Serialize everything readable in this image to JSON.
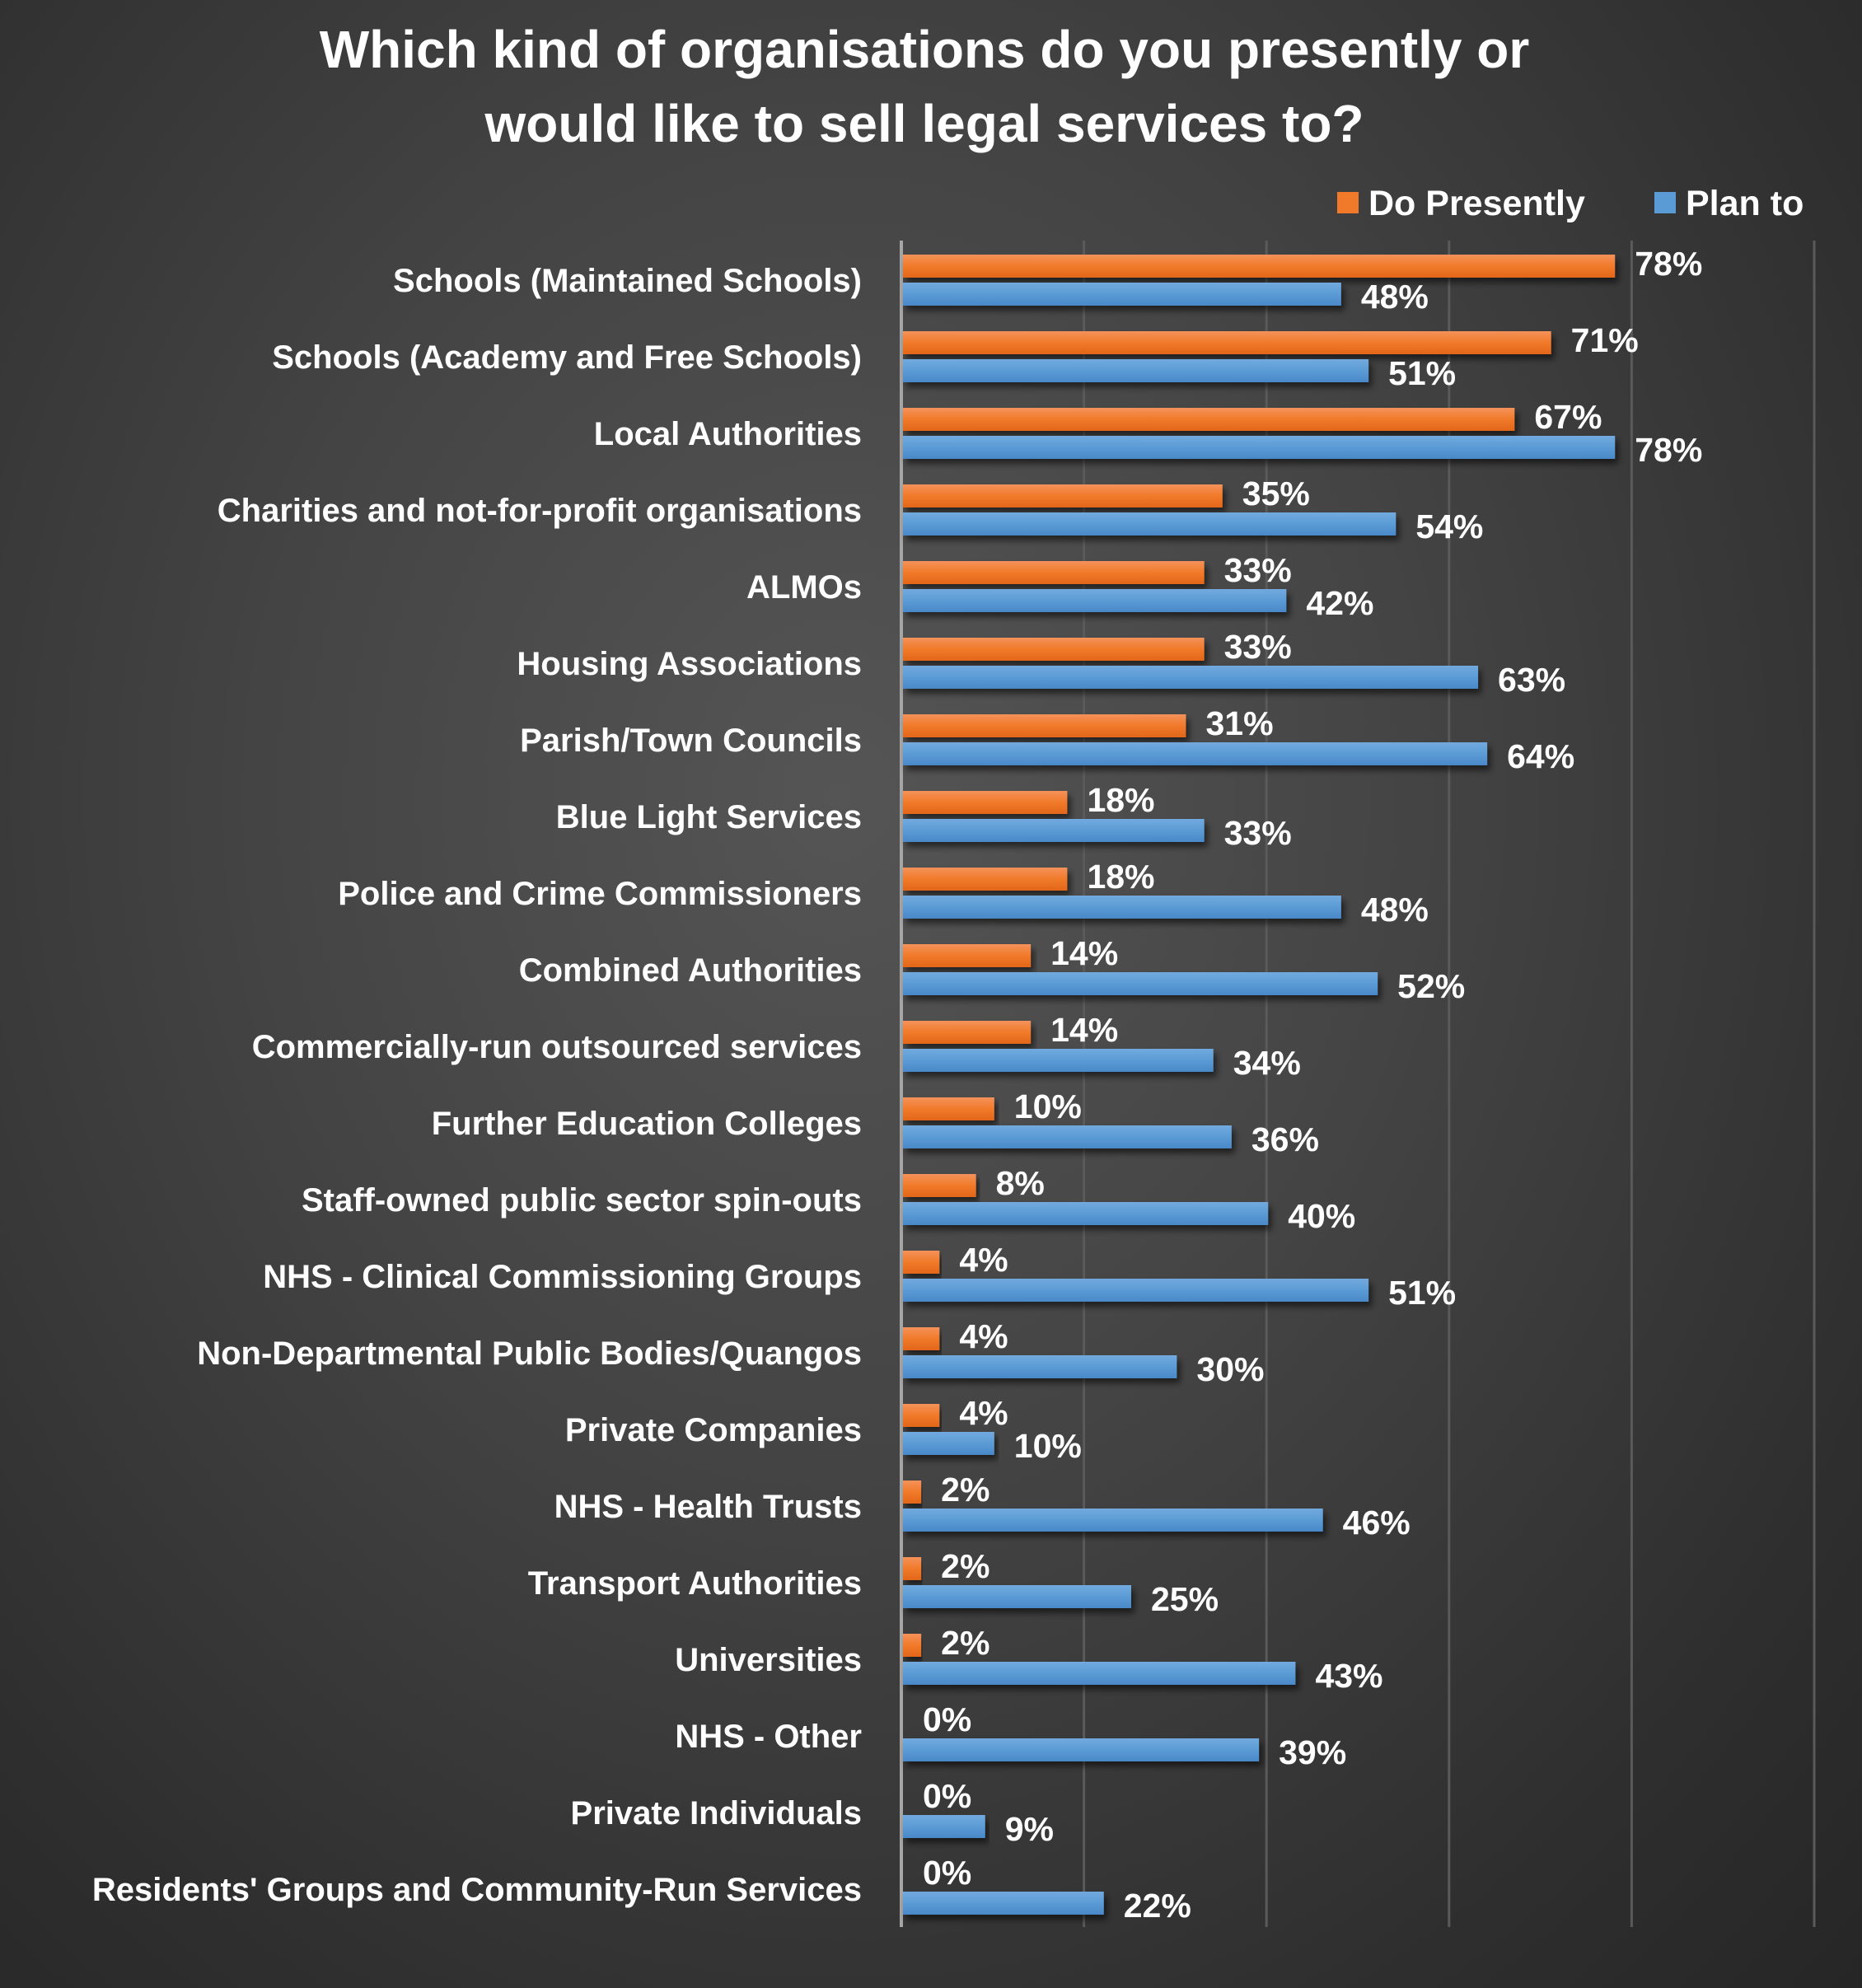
{
  "chart_data": {
    "type": "bar",
    "orientation": "horizontal",
    "title": "Which kind of organisations do you presently or would like to sell legal services to?",
    "title_lines": [
      "Which kind of organisations do you presently or",
      "would like to sell legal services to?"
    ],
    "xlabel": "",
    "ylabel": "",
    "xlim": [
      0,
      100
    ],
    "value_format": "percent",
    "grid": true,
    "legend_position": "top-right",
    "categories": [
      "Schools (Maintained Schools)",
      "Schools (Academy and Free Schools)",
      "Local Authorities",
      "Charities and not-for-profit organisations",
      "ALMOs",
      "Housing Associations",
      "Parish/Town Councils",
      "Blue Light Services",
      "Police and Crime Commissioners",
      "Combined Authorities",
      "Commercially-run outsourced services",
      "Further Education Colleges",
      "Staff-owned public sector spin-outs",
      "NHS - Clinical Commissioning Groups",
      "Non-Departmental Public Bodies/Quangos",
      "Private Companies",
      "NHS - Health Trusts",
      "Transport Authorities",
      "Universities",
      "NHS - Other",
      "Private Individuals",
      "Residents' Groups and Community-Run Services"
    ],
    "series": [
      {
        "name": "Do Presently",
        "color": "#F07A2A",
        "values": [
          78,
          71,
          67,
          35,
          33,
          33,
          31,
          18,
          18,
          14,
          14,
          10,
          8,
          4,
          4,
          4,
          2,
          2,
          2,
          0,
          0,
          0
        ]
      },
      {
        "name": "Plan to",
        "color": "#5B9BD5",
        "values": [
          48,
          51,
          78,
          54,
          42,
          63,
          64,
          33,
          48,
          52,
          34,
          36,
          40,
          51,
          30,
          10,
          46,
          25,
          43,
          39,
          9,
          22
        ]
      }
    ]
  }
}
